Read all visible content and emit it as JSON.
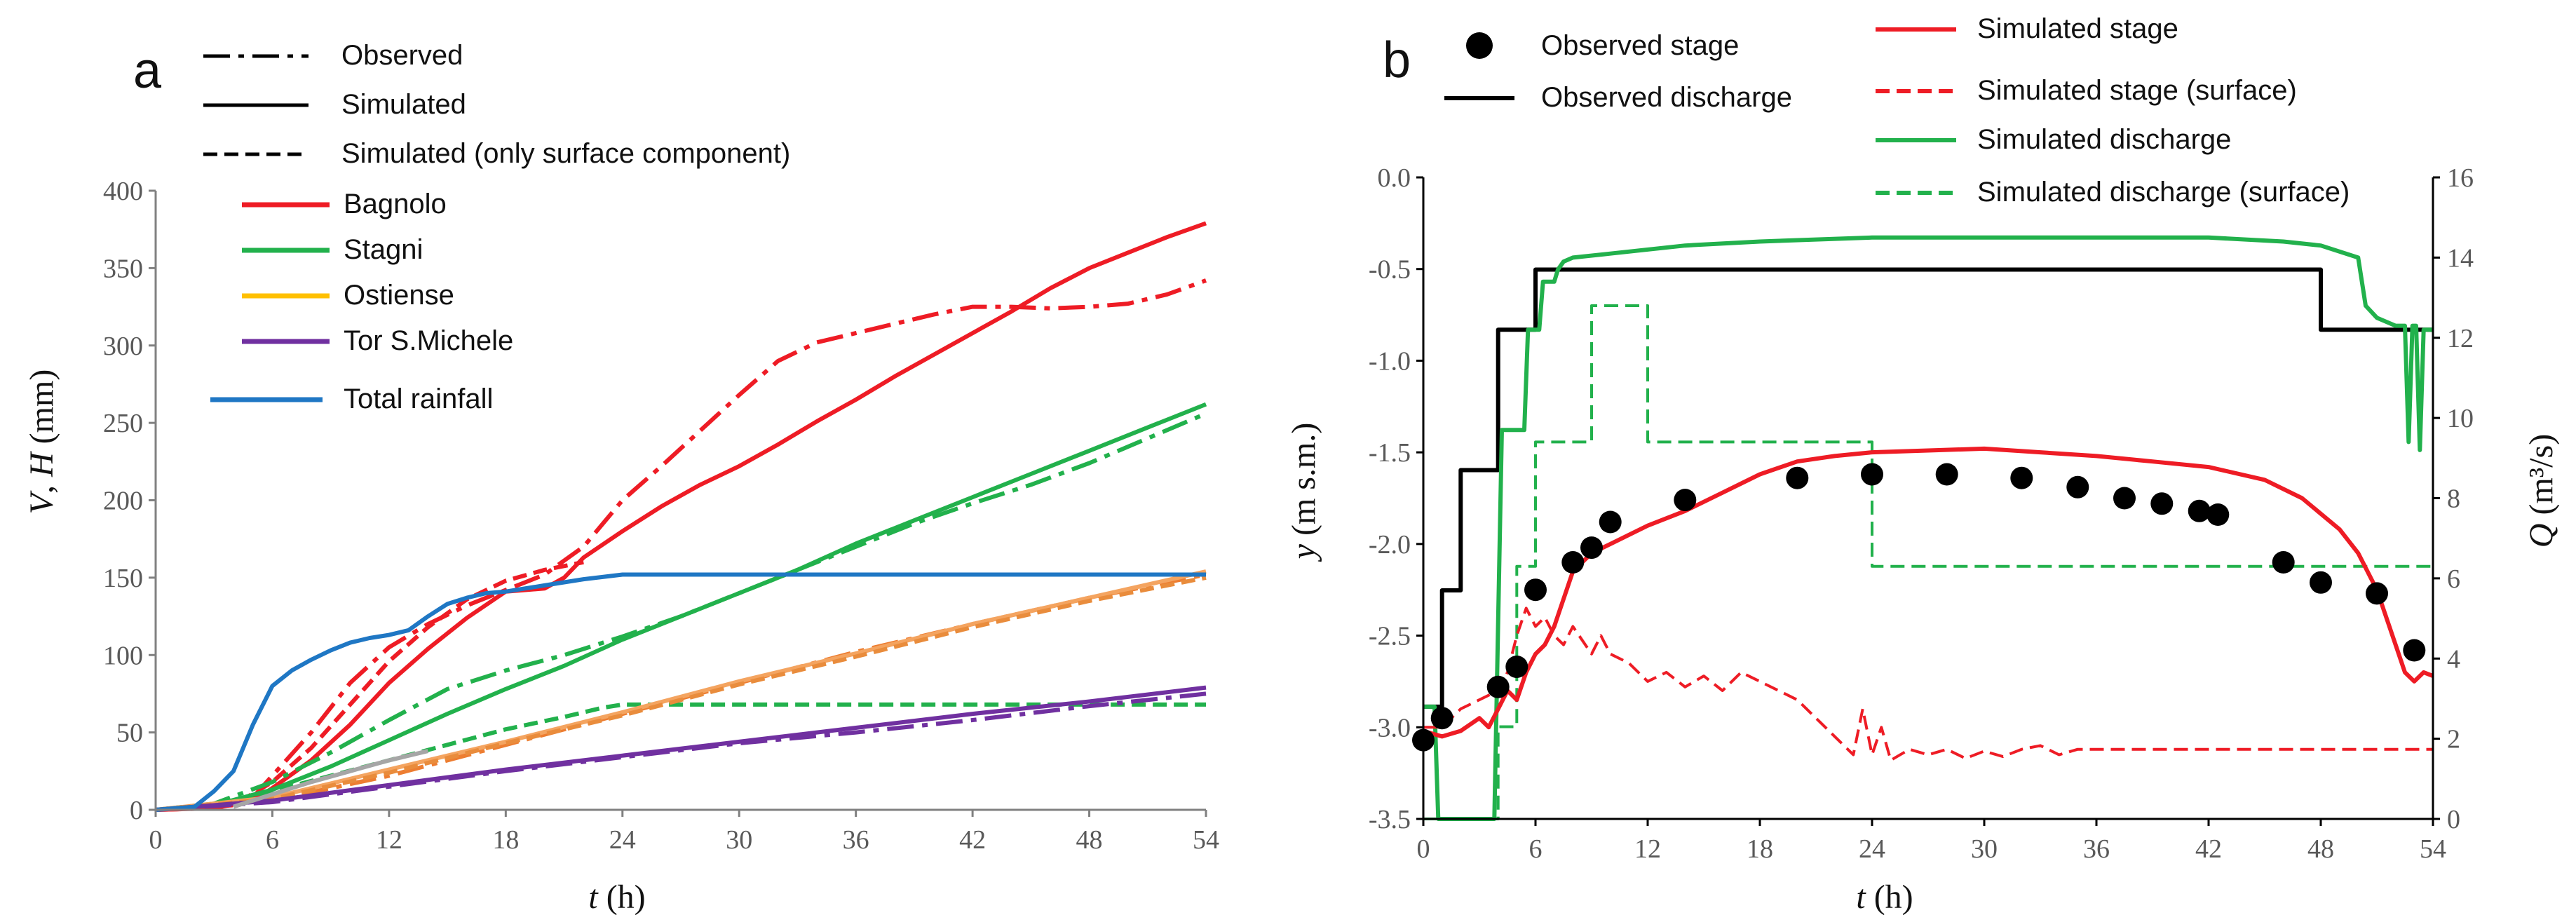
{
  "chart_data": [
    {
      "type": "line",
      "panel": "a",
      "ylabel_var": "V",
      "ylabel_sep": ", ",
      "ylabel_var2": "H",
      "ylabel_unit": " (mm)",
      "xlabel_var": "t",
      "xlabel_unit": " (h)",
      "xlim": [
        0,
        54
      ],
      "ylim": [
        0,
        400
      ],
      "xticks": [
        "0",
        "6",
        "12",
        "18",
        "24",
        "30",
        "36",
        "42",
        "48",
        "54"
      ],
      "yticks": [
        "0",
        "50",
        "100",
        "150",
        "200",
        "250",
        "300",
        "350",
        "400"
      ],
      "legend_styles": [
        {
          "label": "Observed",
          "style": "dashdot"
        },
        {
          "label": "Simulated",
          "style": "solid"
        },
        {
          "label": "Simulated (only surface component)",
          "style": "dashed"
        }
      ],
      "legend_series": [
        {
          "label": "Bagnolo",
          "color": "#ee1c25"
        },
        {
          "label": "Stagni",
          "color": "#22b14c"
        },
        {
          "label": "Ostiense",
          "color": "#ffc000"
        },
        {
          "label": "Tor S.Michele",
          "color": "#7030a0"
        },
        {
          "label": "Total rainfall",
          "color": "#1f77c4"
        }
      ],
      "series": [
        {
          "name": "Bagnolo observed",
          "color": "#ee1c25",
          "style": "dashdot",
          "x": [
            0,
            3,
            5,
            6,
            8,
            10,
            12,
            14,
            16,
            18,
            20,
            22,
            24,
            26,
            28,
            30,
            32,
            34,
            36,
            38,
            40,
            42,
            44,
            46,
            48,
            50,
            52,
            54
          ],
          "y": [
            0,
            1,
            8,
            22,
            50,
            82,
            105,
            120,
            132,
            142,
            152,
            170,
            200,
            222,
            245,
            268,
            290,
            302,
            308,
            314,
            320,
            325,
            325,
            324,
            325,
            327,
            333,
            342
          ]
        },
        {
          "name": "Bagnolo simulated",
          "color": "#ee1c25",
          "style": "solid",
          "x": [
            0,
            3,
            5,
            6,
            8,
            10,
            12,
            14,
            16,
            18,
            19,
            20,
            21,
            22,
            24,
            26,
            28,
            30,
            32,
            34,
            36,
            38,
            40,
            42,
            44,
            46,
            48,
            50,
            52,
            54
          ],
          "y": [
            0,
            1,
            6,
            14,
            32,
            55,
            82,
            104,
            124,
            141,
            142,
            143,
            150,
            163,
            180,
            196,
            210,
            222,
            236,
            251,
            265,
            280,
            294,
            308,
            322,
            337,
            350,
            360,
            370,
            379
          ]
        },
        {
          "name": "Bagnolo surface",
          "color": "#ee1c25",
          "style": "dashed",
          "x": [
            0,
            4,
            6,
            8,
            10,
            12,
            14,
            16,
            18,
            20,
            22
          ],
          "y": [
            0,
            3,
            18,
            40,
            68,
            96,
            118,
            136,
            148,
            155,
            160
          ]
        },
        {
          "name": "Stagni observed",
          "color": "#22b14c",
          "style": "dashdot",
          "x": [
            0,
            3,
            6,
            9,
            12,
            15,
            18,
            21,
            24,
            27,
            30,
            33,
            36,
            39,
            42,
            45,
            48,
            51,
            54
          ],
          "y": [
            0,
            4,
            18,
            37,
            58,
            78,
            90,
            100,
            112,
            125,
            140,
            155,
            170,
            185,
            198,
            210,
            224,
            240,
            256
          ]
        },
        {
          "name": "Stagni simulated",
          "color": "#22b14c",
          "style": "solid",
          "x": [
            0,
            3,
            6,
            9,
            12,
            15,
            18,
            21,
            24,
            27,
            30,
            33,
            36,
            39,
            42,
            45,
            48,
            51,
            54
          ],
          "y": [
            0,
            3,
            13,
            28,
            45,
            62,
            78,
            93,
            110,
            125,
            140,
            155,
            172,
            187,
            202,
            217,
            232,
            247,
            262
          ]
        },
        {
          "name": "Stagni surface",
          "color": "#22b14c",
          "style": "dashed",
          "x": [
            0,
            3,
            6,
            9,
            12,
            15,
            18,
            21,
            23,
            24,
            30,
            36,
            42,
            48,
            54
          ],
          "y": [
            0,
            3,
            12,
            22,
            32,
            42,
            52,
            60,
            66,
            68,
            68,
            68,
            68,
            68,
            68
          ]
        },
        {
          "name": "Ostiense observed",
          "color": "#ed7d31",
          "style": "dashdot",
          "x": [
            0,
            6,
            12,
            18,
            24,
            30,
            36,
            42,
            48,
            54
          ],
          "y": [
            0,
            6,
            22,
            42,
            62,
            82,
            102,
            120,
            137,
            152
          ]
        },
        {
          "name": "Ostiense simulated",
          "color": "#f4a460",
          "style": "solid",
          "x": [
            0,
            6,
            12,
            18,
            24,
            30,
            36,
            42,
            48,
            54
          ],
          "y": [
            0,
            8,
            26,
            44,
            63,
            83,
            101,
            120,
            137,
            154
          ]
        },
        {
          "name": "Ostiense surface",
          "color": "#e98c3c",
          "style": "dashed",
          "x": [
            0,
            6,
            12,
            18,
            24,
            30,
            36,
            42,
            48,
            54
          ],
          "y": [
            0,
            7,
            24,
            43,
            61,
            81,
            99,
            118,
            135,
            150
          ]
        },
        {
          "name": "Tor S.Michele observed",
          "color": "#7030a0",
          "style": "dashdot",
          "x": [
            0,
            6,
            12,
            18,
            24,
            30,
            36,
            42,
            48,
            54
          ],
          "y": [
            0,
            5,
            15,
            25,
            34,
            43,
            50,
            58,
            67,
            75
          ]
        },
        {
          "name": "Tor S.Michele simulated",
          "color": "#7030a0",
          "style": "solid",
          "x": [
            0,
            6,
            12,
            18,
            24,
            30,
            36,
            42,
            48,
            54
          ],
          "y": [
            0,
            6,
            16,
            26,
            35,
            44,
            53,
            62,
            70,
            79
          ]
        },
        {
          "name": "Total rainfall",
          "color": "#1f77c4",
          "style": "solid",
          "x": [
            0,
            2,
            3,
            4,
            5,
            6,
            7,
            8,
            9,
            10,
            11,
            12,
            13,
            14,
            15,
            16,
            17,
            18,
            20,
            22,
            24,
            30,
            36,
            42,
            48,
            54
          ],
          "y": [
            0,
            2,
            12,
            25,
            55,
            80,
            90,
            97,
            103,
            108,
            111,
            113,
            116,
            125,
            133,
            137,
            140,
            141,
            145,
            149,
            152,
            152,
            152,
            152,
            152,
            152
          ]
        },
        {
          "name": "Gray reference",
          "color": "#a6a6a6",
          "style": "solid",
          "x": [
            4,
            6,
            8,
            10,
            12,
            14
          ],
          "y": [
            2,
            10,
            18,
            25,
            32,
            38
          ]
        }
      ]
    },
    {
      "type": "line",
      "panel": "b",
      "ylabel_var": "y",
      "ylabel_unit": " (m s.m.)",
      "ylabel2_var": "Q",
      "ylabel2_unit": " (m³/s)",
      "xlabel_var": "t",
      "xlabel_unit": " (h)",
      "xlim": [
        0,
        54
      ],
      "ylim": [
        -3.5,
        0
      ],
      "y2lim": [
        0,
        16
      ],
      "xticks": [
        "0",
        "6",
        "12",
        "18",
        "24",
        "30",
        "36",
        "42",
        "48",
        "54"
      ],
      "yticks": [
        "-3.5",
        "-3.0",
        "-2.5",
        "-2.0",
        "-1.5",
        "-1.0",
        "-0.5",
        "0.0"
      ],
      "y2ticks": [
        "0",
        "2",
        "4",
        "6",
        "8",
        "10",
        "12",
        "14",
        "16"
      ],
      "legend": [
        {
          "label": "Observed stage",
          "color": "#000000",
          "style": "marker"
        },
        {
          "label": "Observed discharge",
          "color": "#000000",
          "style": "solid"
        },
        {
          "label": "Simulated stage",
          "color": "#ee1c25",
          "style": "solid"
        },
        {
          "label": "Simulated stage (surface)",
          "color": "#ee1c25",
          "style": "dashed"
        },
        {
          "label": "Simulated discharge",
          "color": "#22b14c",
          "style": "solid"
        },
        {
          "label": "Simulated discharge (surface)",
          "color": "#22b14c",
          "style": "dashed"
        }
      ],
      "observed_stage": {
        "x": [
          0,
          1,
          4,
          5,
          6,
          8,
          9,
          10,
          14,
          20,
          24,
          28,
          32,
          35,
          37.5,
          39.5,
          41.5,
          42.5,
          46,
          48,
          51,
          53
        ],
        "y": [
          -3.07,
          -2.95,
          -2.78,
          -2.67,
          -2.25,
          -2.1,
          -2.02,
          -1.88,
          -1.76,
          -1.64,
          -1.62,
          -1.62,
          -1.64,
          -1.69,
          -1.75,
          -1.78,
          -1.82,
          -1.84,
          -2.1,
          -2.21,
          -2.27,
          -2.58
        ]
      },
      "series": [
        {
          "name": "Observed discharge",
          "axis": "right",
          "color": "#000000",
          "style": "solid",
          "step": true,
          "x": [
            0,
            1,
            2,
            4,
            6,
            48,
            53,
            54
          ],
          "y": [
            2.8,
            5.7,
            8.7,
            12.2,
            13.7,
            12.2,
            12.2,
            12.2
          ]
        },
        {
          "name": "Simulated discharge",
          "axis": "right",
          "color": "#22b14c",
          "style": "solid",
          "x": [
            0,
            0.6,
            0.8,
            1.0,
            3.8,
            4.2,
            5.4,
            5.6,
            6.2,
            6.4,
            7.0,
            7.2,
            7.5,
            8,
            10,
            14,
            18,
            24,
            30,
            36,
            42,
            46,
            48,
            50,
            50.4,
            51,
            52,
            52.5,
            52.7,
            52.9,
            53.1,
            53.3,
            53.5,
            53.7,
            54
          ],
          "y": [
            2.8,
            2.8,
            0,
            0,
            0,
            9.7,
            9.7,
            12.2,
            12.2,
            13.4,
            13.4,
            13.7,
            13.9,
            14.0,
            14.1,
            14.3,
            14.4,
            14.5,
            14.5,
            14.5,
            14.5,
            14.4,
            14.3,
            14.0,
            12.8,
            12.5,
            12.3,
            12.3,
            9.4,
            12.3,
            12.3,
            9.2,
            12.2,
            12.2,
            12.2
          ]
        },
        {
          "name": "Simulated discharge (surface)",
          "axis": "right",
          "color": "#22b14c",
          "style": "dashed",
          "step": true,
          "x": [
            0,
            4,
            5,
            6,
            9,
            12,
            24,
            54
          ],
          "y": [
            0,
            2.3,
            6.3,
            9.4,
            12.8,
            9.4,
            6.3,
            6.3
          ]
        },
        {
          "name": "Simulated stage",
          "axis": "left",
          "color": "#ee1c25",
          "style": "solid",
          "x": [
            0,
            1,
            2,
            3,
            3.5,
            4,
            4.5,
            5,
            5.5,
            6,
            6.5,
            7,
            7.5,
            8,
            9,
            10,
            12,
            14,
            16,
            18,
            20,
            22,
            24,
            27,
            30,
            33,
            36,
            39,
            42,
            45,
            47,
            49,
            50,
            51,
            52,
            52.5,
            53,
            53.5,
            54
          ],
          "y": [
            -3.02,
            -3.05,
            -3.02,
            -2.95,
            -3.0,
            -2.9,
            -2.8,
            -2.85,
            -2.7,
            -2.6,
            -2.55,
            -2.45,
            -2.3,
            -2.15,
            -2.05,
            -2.0,
            -1.9,
            -1.82,
            -1.72,
            -1.62,
            -1.55,
            -1.52,
            -1.5,
            -1.49,
            -1.48,
            -1.5,
            -1.52,
            -1.55,
            -1.58,
            -1.65,
            -1.75,
            -1.92,
            -2.05,
            -2.25,
            -2.55,
            -2.7,
            -2.75,
            -2.7,
            -2.72
          ]
        },
        {
          "name": "Simulated stage (surface)",
          "axis": "left",
          "color": "#ee1c25",
          "style": "dashed",
          "x": [
            0,
            1,
            2,
            3,
            4,
            4.5,
            5,
            5.5,
            6,
            6.5,
            7,
            7.5,
            8,
            9,
            9.5,
            10,
            11,
            12,
            13,
            14,
            15,
            16,
            17,
            18,
            19,
            20,
            21,
            22,
            23,
            23.5,
            24,
            24.5,
            25,
            26,
            27,
            28,
            29,
            30,
            31,
            32,
            33,
            34,
            35,
            36,
            40,
            45,
            50,
            54
          ],
          "y": [
            -3.0,
            -3.0,
            -2.9,
            -2.85,
            -2.8,
            -2.7,
            -2.5,
            -2.35,
            -2.45,
            -2.4,
            -2.5,
            -2.55,
            -2.45,
            -2.6,
            -2.5,
            -2.6,
            -2.65,
            -2.75,
            -2.7,
            -2.78,
            -2.72,
            -2.8,
            -2.7,
            -2.75,
            -2.8,
            -2.85,
            -2.95,
            -3.05,
            -3.15,
            -2.9,
            -3.15,
            -3.0,
            -3.18,
            -3.12,
            -3.15,
            -3.12,
            -3.17,
            -3.13,
            -3.16,
            -3.12,
            -3.1,
            -3.15,
            -3.12,
            -3.12,
            -3.12,
            -3.12,
            -3.12,
            -3.12
          ]
        }
      ]
    }
  ]
}
